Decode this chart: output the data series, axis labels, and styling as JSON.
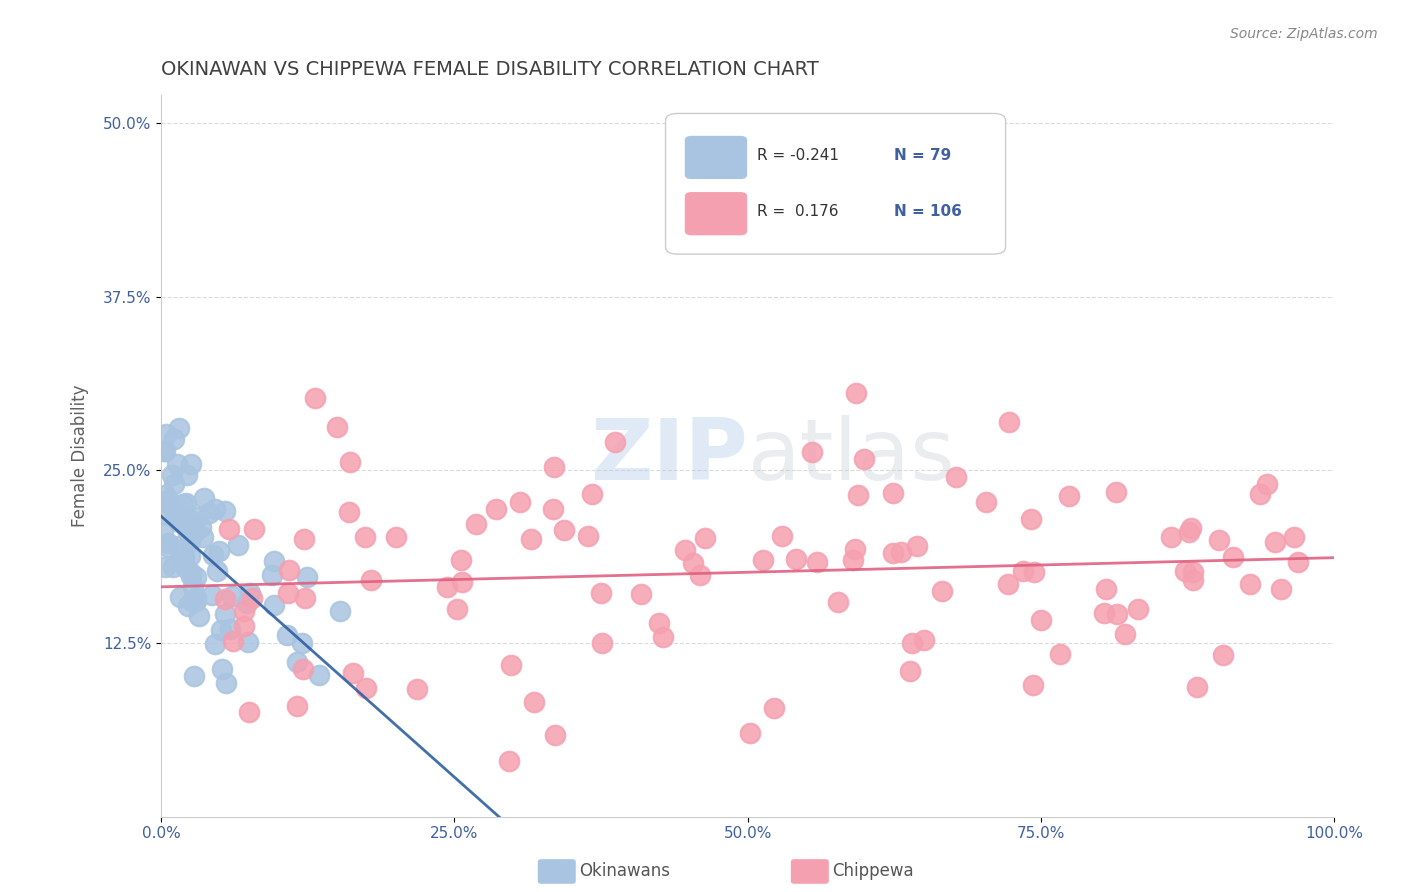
{
  "title": "OKINAWAN VS CHIPPEWA FEMALE DISABILITY CORRELATION CHART",
  "source": "Source: ZipAtlas.com",
  "xlabel_okinawan": "Okinawans",
  "xlabel_chippewa": "Chippewa",
  "ylabel": "Female Disability",
  "xlim": [
    0.0,
    1.0
  ],
  "ylim": [
    0.0,
    0.52
  ],
  "xticks": [
    0.0,
    0.25,
    0.5,
    0.75,
    1.0
  ],
  "xtick_labels": [
    "0.0%",
    "25.0%",
    "50.0%",
    "75.0%",
    "100.0%"
  ],
  "yticks": [
    0.125,
    0.25,
    0.375,
    0.5
  ],
  "ytick_labels": [
    "12.5%",
    "25.0%",
    "37.5%",
    "50.0%"
  ],
  "okinawan_color": "#a8c4e0",
  "chippewa_color": "#f5a0b0",
  "okinawan_line_color": "#3060a0",
  "chippewa_line_color": "#e06080",
  "R_okinawan": -0.241,
  "N_okinawan": 79,
  "R_chippewa": 0.176,
  "N_chippewa": 106,
  "watermark_zip": "ZIP",
  "watermark_atlas": "atlas",
  "background_color": "#ffffff",
  "grid_color": "#cccccc",
  "title_color": "#404040",
  "axis_label_color": "#606060",
  "tick_label_color": "#4060a0"
}
